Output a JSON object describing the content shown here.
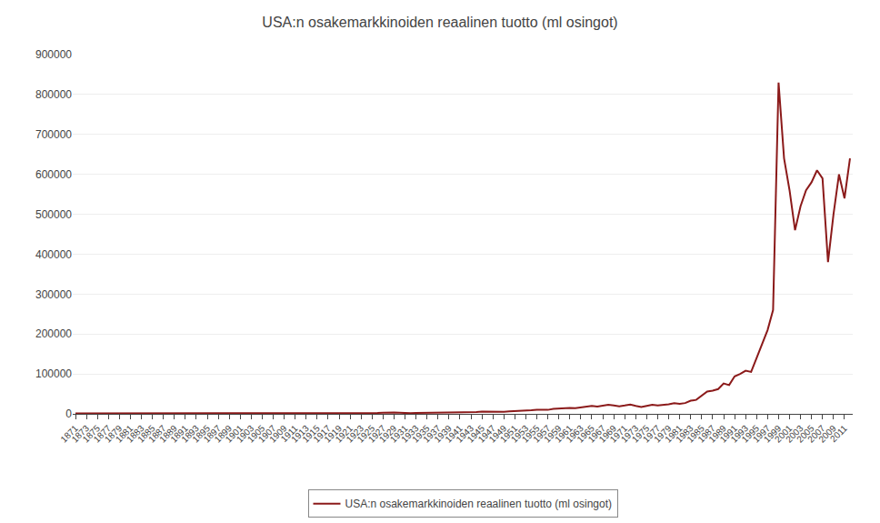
{
  "chart_data": {
    "type": "line",
    "title": "USA:n osakemarkkinoiden reaalinen tuotto (ml osingot)",
    "x": [
      1871,
      1872,
      1873,
      1874,
      1875,
      1876,
      1877,
      1878,
      1879,
      1880,
      1881,
      1882,
      1883,
      1884,
      1885,
      1886,
      1887,
      1888,
      1889,
      1890,
      1891,
      1892,
      1893,
      1894,
      1895,
      1896,
      1897,
      1898,
      1899,
      1900,
      1901,
      1902,
      1903,
      1904,
      1905,
      1906,
      1907,
      1908,
      1909,
      1910,
      1911,
      1912,
      1913,
      1914,
      1915,
      1916,
      1917,
      1918,
      1919,
      1920,
      1921,
      1922,
      1923,
      1924,
      1925,
      1926,
      1927,
      1928,
      1929,
      1930,
      1931,
      1932,
      1933,
      1934,
      1935,
      1936,
      1937,
      1938,
      1939,
      1940,
      1941,
      1942,
      1943,
      1944,
      1945,
      1946,
      1947,
      1948,
      1949,
      1950,
      1951,
      1952,
      1953,
      1954,
      1955,
      1956,
      1957,
      1958,
      1959,
      1960,
      1961,
      1962,
      1963,
      1964,
      1965,
      1966,
      1967,
      1968,
      1969,
      1970,
      1971,
      1972,
      1973,
      1974,
      1975,
      1976,
      1977,
      1978,
      1979,
      1980,
      1981,
      1982,
      1983,
      1984,
      1985,
      1986,
      1987,
      1988,
      1989,
      1990,
      1991,
      1992,
      1993,
      1994,
      1995,
      1996,
      1997,
      1998,
      1999,
      2000,
      2001,
      2002,
      2003,
      2004,
      2005,
      2006,
      2007,
      2008,
      2009,
      2010,
      2011,
      2012
    ],
    "series": [
      {
        "name": "USA:n osakemarkkinoiden reaalinen tuotto (ml osingot)",
        "color": "#8B1A1A",
        "values": [
          1000,
          1010,
          980,
          970,
          990,
          950,
          960,
          1020,
          1100,
          1150,
          1180,
          1160,
          1130,
          1050,
          1080,
          1150,
          1100,
          1090,
          1080,
          1050,
          1100,
          1200,
          1050,
          980,
          1020,
          970,
          1050,
          1150,
          1250,
          1200,
          1300,
          1320,
          1250,
          1350,
          1500,
          1550,
          1300,
          1500,
          1600,
          1550,
          1600,
          1650,
          1580,
          1500,
          1700,
          1750,
          1400,
          1350,
          1400,
          1250,
          1400,
          1700,
          1750,
          2000,
          2300,
          2500,
          3000,
          3600,
          3500,
          2800,
          2000,
          1600,
          2500,
          2600,
          3200,
          3900,
          3200,
          3600,
          3700,
          3500,
          3300,
          3600,
          4200,
          4600,
          5500,
          5000,
          4700,
          4800,
          5200,
          6200,
          6800,
          7200,
          7000,
          9000,
          10500,
          11000,
          10000,
          12500,
          13500,
          13000,
          15000,
          14000,
          16500,
          18500,
          20000,
          18500,
          21000,
          22500,
          21000,
          19000,
          21000,
          23500,
          20000,
          17000,
          20000,
          23000,
          21000,
          22000,
          24000,
          27000,
          25000,
          27000,
          33000,
          35000,
          46000,
          56000,
          58000,
          62000,
          76000,
          72000,
          94000,
          100000,
          108000,
          105000,
          140000,
          175000,
          210000,
          260000,
          830000,
          640000,
          560000,
          460000,
          520000,
          560000,
          580000,
          610000,
          590000,
          380000,
          500000,
          600000,
          540000,
          640000
        ]
      }
    ],
    "xlim": [
      1870.5,
      2012.5
    ],
    "xticks": [
      1871,
      1873,
      1875,
      1877,
      1879,
      1881,
      1883,
      1885,
      1887,
      1889,
      1891,
      1893,
      1895,
      1897,
      1899,
      1901,
      1903,
      1905,
      1907,
      1909,
      1911,
      1913,
      1915,
      1917,
      1919,
      1921,
      1923,
      1925,
      1927,
      1929,
      1931,
      1933,
      1935,
      1937,
      1939,
      1941,
      1943,
      1945,
      1947,
      1949,
      1951,
      1953,
      1955,
      1957,
      1959,
      1961,
      1963,
      1965,
      1967,
      1969,
      1971,
      1973,
      1975,
      1977,
      1979,
      1981,
      1983,
      1985,
      1987,
      1989,
      1991,
      1993,
      1995,
      1997,
      1999,
      2001,
      2003,
      2005,
      2007,
      2009,
      2011
    ],
    "ylim": [
      0,
      900000
    ],
    "yticks": [
      0,
      100000,
      200000,
      300000,
      400000,
      500000,
      600000,
      700000,
      800000,
      900000
    ],
    "grid": true,
    "legend": "bottom"
  }
}
